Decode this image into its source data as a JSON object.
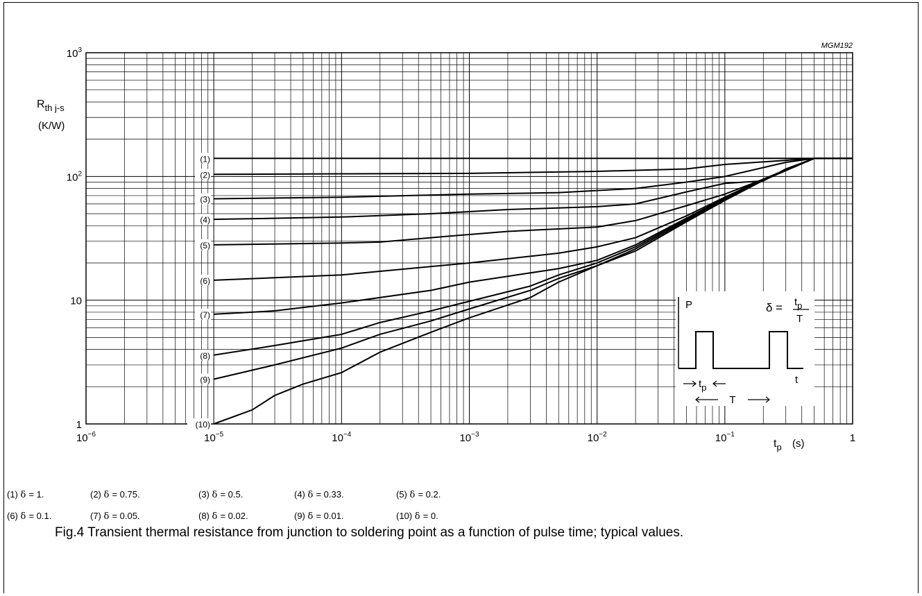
{
  "chart_data": {
    "type": "line",
    "code": "MGM192",
    "ylabel": {
      "main": "R",
      "sub": "th j-s",
      "unit": "(K/W)"
    },
    "xlabel": {
      "main": "t",
      "sub": "p",
      "unit": "(s)"
    },
    "x_scale": "log",
    "y_scale": "log",
    "xlim": [
      1e-06,
      1
    ],
    "ylim": [
      1,
      1000
    ],
    "x_ticks": [
      {
        "base": "10",
        "exp": "−6"
      },
      {
        "base": "10",
        "exp": "−5"
      },
      {
        "base": "10",
        "exp": "−4"
      },
      {
        "base": "10",
        "exp": "−3"
      },
      {
        "base": "10",
        "exp": "−2"
      },
      {
        "base": "10",
        "exp": "−1"
      },
      {
        "base": "1",
        "exp": ""
      }
    ],
    "y_ticks": [
      {
        "base": "1",
        "exp": ""
      },
      {
        "base": "10",
        "exp": ""
      },
      {
        "base": "10",
        "exp": "2"
      },
      {
        "base": "10",
        "exp": "3"
      }
    ],
    "grid": true,
    "series": [
      {
        "label": "(1)",
        "points": [
          [
            1e-05,
            140
          ],
          [
            0.001,
            140
          ],
          [
            0.1,
            140
          ],
          [
            1,
            140
          ]
        ]
      },
      {
        "label": "(2)",
        "points": [
          [
            1e-05,
            104
          ],
          [
            0.0001,
            105
          ],
          [
            0.001,
            106
          ],
          [
            0.01,
            110
          ],
          [
            0.05,
            115
          ],
          [
            0.1,
            125
          ],
          [
            0.3,
            135
          ],
          [
            0.5,
            140
          ],
          [
            1,
            140
          ]
        ]
      },
      {
        "label": "(3)",
        "points": [
          [
            1e-05,
            66
          ],
          [
            0.0001,
            68
          ],
          [
            0.001,
            72
          ],
          [
            0.005,
            74
          ],
          [
            0.02,
            80
          ],
          [
            0.05,
            90
          ],
          [
            0.1,
            100
          ],
          [
            0.3,
            130
          ],
          [
            0.5,
            140
          ],
          [
            1,
            140
          ]
        ]
      },
      {
        "label": "(4)",
        "points": [
          [
            1e-05,
            45
          ],
          [
            0.0001,
            47
          ],
          [
            0.0005,
            50
          ],
          [
            0.002,
            54
          ],
          [
            0.01,
            57
          ],
          [
            0.02,
            60
          ],
          [
            0.05,
            75
          ],
          [
            0.1,
            88
          ],
          [
            0.2,
            92
          ],
          [
            0.3,
            115
          ],
          [
            0.5,
            140
          ],
          [
            1,
            140
          ]
        ]
      },
      {
        "label": "(5)",
        "points": [
          [
            1e-05,
            28
          ],
          [
            0.0001,
            29
          ],
          [
            0.0002,
            29.5
          ],
          [
            0.0005,
            32
          ],
          [
            0.002,
            36
          ],
          [
            0.01,
            39
          ],
          [
            0.02,
            44
          ],
          [
            0.05,
            58
          ],
          [
            0.1,
            72
          ],
          [
            0.2,
            95
          ],
          [
            0.5,
            140
          ],
          [
            1,
            140
          ]
        ]
      },
      {
        "label": "(6)",
        "points": [
          [
            1e-05,
            14.5
          ],
          [
            0.0001,
            16
          ],
          [
            0.001,
            20
          ],
          [
            0.005,
            24
          ],
          [
            0.01,
            27
          ],
          [
            0.02,
            32
          ],
          [
            0.05,
            48
          ],
          [
            0.1,
            68
          ],
          [
            0.2,
            95
          ],
          [
            0.5,
            140
          ],
          [
            1,
            140
          ]
        ]
      },
      {
        "label": "(7)",
        "points": [
          [
            1e-05,
            7.7
          ],
          [
            3e-05,
            8.2
          ],
          [
            0.0001,
            9.5
          ],
          [
            0.0005,
            12
          ],
          [
            0.001,
            14
          ],
          [
            0.005,
            18
          ],
          [
            0.01,
            21
          ],
          [
            0.02,
            28
          ],
          [
            0.05,
            46
          ],
          [
            0.1,
            67
          ],
          [
            0.2,
            95
          ],
          [
            0.5,
            140
          ],
          [
            1,
            140
          ]
        ]
      },
      {
        "label": "(8)",
        "points": [
          [
            1e-05,
            3.6
          ],
          [
            3e-05,
            4.3
          ],
          [
            0.0001,
            5.3
          ],
          [
            0.0002,
            6.6
          ],
          [
            0.0005,
            8.2
          ],
          [
            0.001,
            9.8
          ],
          [
            0.003,
            13
          ],
          [
            0.005,
            16
          ],
          [
            0.01,
            20
          ],
          [
            0.02,
            27
          ],
          [
            0.05,
            45
          ],
          [
            0.1,
            66
          ],
          [
            0.2,
            95
          ],
          [
            0.5,
            140
          ],
          [
            1,
            140
          ]
        ]
      },
      {
        "label": "(9)",
        "points": [
          [
            1e-05,
            2.3
          ],
          [
            3e-05,
            3
          ],
          [
            0.0001,
            4.1
          ],
          [
            0.0002,
            5.3
          ],
          [
            0.0005,
            6.8
          ],
          [
            0.001,
            8.5
          ],
          [
            0.003,
            12
          ],
          [
            0.005,
            15
          ],
          [
            0.01,
            19
          ],
          [
            0.02,
            26
          ],
          [
            0.05,
            44
          ],
          [
            0.1,
            65
          ],
          [
            0.2,
            95
          ],
          [
            0.5,
            140
          ],
          [
            1,
            140
          ]
        ]
      },
      {
        "label": "(10)",
        "points": [
          [
            1e-05,
            1
          ],
          [
            2e-05,
            1.3
          ],
          [
            3e-05,
            1.7
          ],
          [
            5e-05,
            2.1
          ],
          [
            0.0001,
            2.6
          ],
          [
            0.0002,
            3.8
          ],
          [
            0.0005,
            5.5
          ],
          [
            0.001,
            7.2
          ],
          [
            0.003,
            10.5
          ],
          [
            0.005,
            14
          ],
          [
            0.01,
            19
          ],
          [
            0.02,
            25
          ],
          [
            0.05,
            43
          ],
          [
            0.1,
            64
          ],
          [
            0.2,
            93
          ],
          [
            0.5,
            140
          ],
          [
            1,
            140
          ]
        ]
      }
    ],
    "inset": {
      "p_label": "P",
      "t_label": "t",
      "tp_main": "t",
      "tp_sub": "p",
      "period_label": "T",
      "formula": {
        "lhs": "δ =",
        "num_main": "t",
        "num_sub": "p",
        "den": "T"
      }
    }
  },
  "legend": {
    "rows": [
      [
        {
          "num": "(1)",
          "delta": "δ",
          "value": "= 1."
        },
        {
          "num": "(2)",
          "delta": "δ",
          "value": "= 0.75."
        },
        {
          "num": "(3)",
          "delta": "δ",
          "value": "= 0.5."
        },
        {
          "num": "(4)",
          "delta": "δ",
          "value": "= 0.33."
        },
        {
          "num": "(5)",
          "delta": "δ",
          "value": "= 0.2."
        }
      ],
      [
        {
          "num": "(6)",
          "delta": "δ",
          "value": "= 0.1."
        },
        {
          "num": "(7)",
          "delta": "δ",
          "value": "= 0.05."
        },
        {
          "num": "(8)",
          "delta": "δ",
          "value": "= 0.02."
        },
        {
          "num": "(9)",
          "delta": "δ",
          "value": "= 0.01."
        },
        {
          "num": "(10)",
          "delta": "δ",
          "value": "= 0."
        }
      ]
    ]
  },
  "caption": "Fig.4  Transient thermal resistance from junction to soldering point as a function of pulse time; typical values."
}
